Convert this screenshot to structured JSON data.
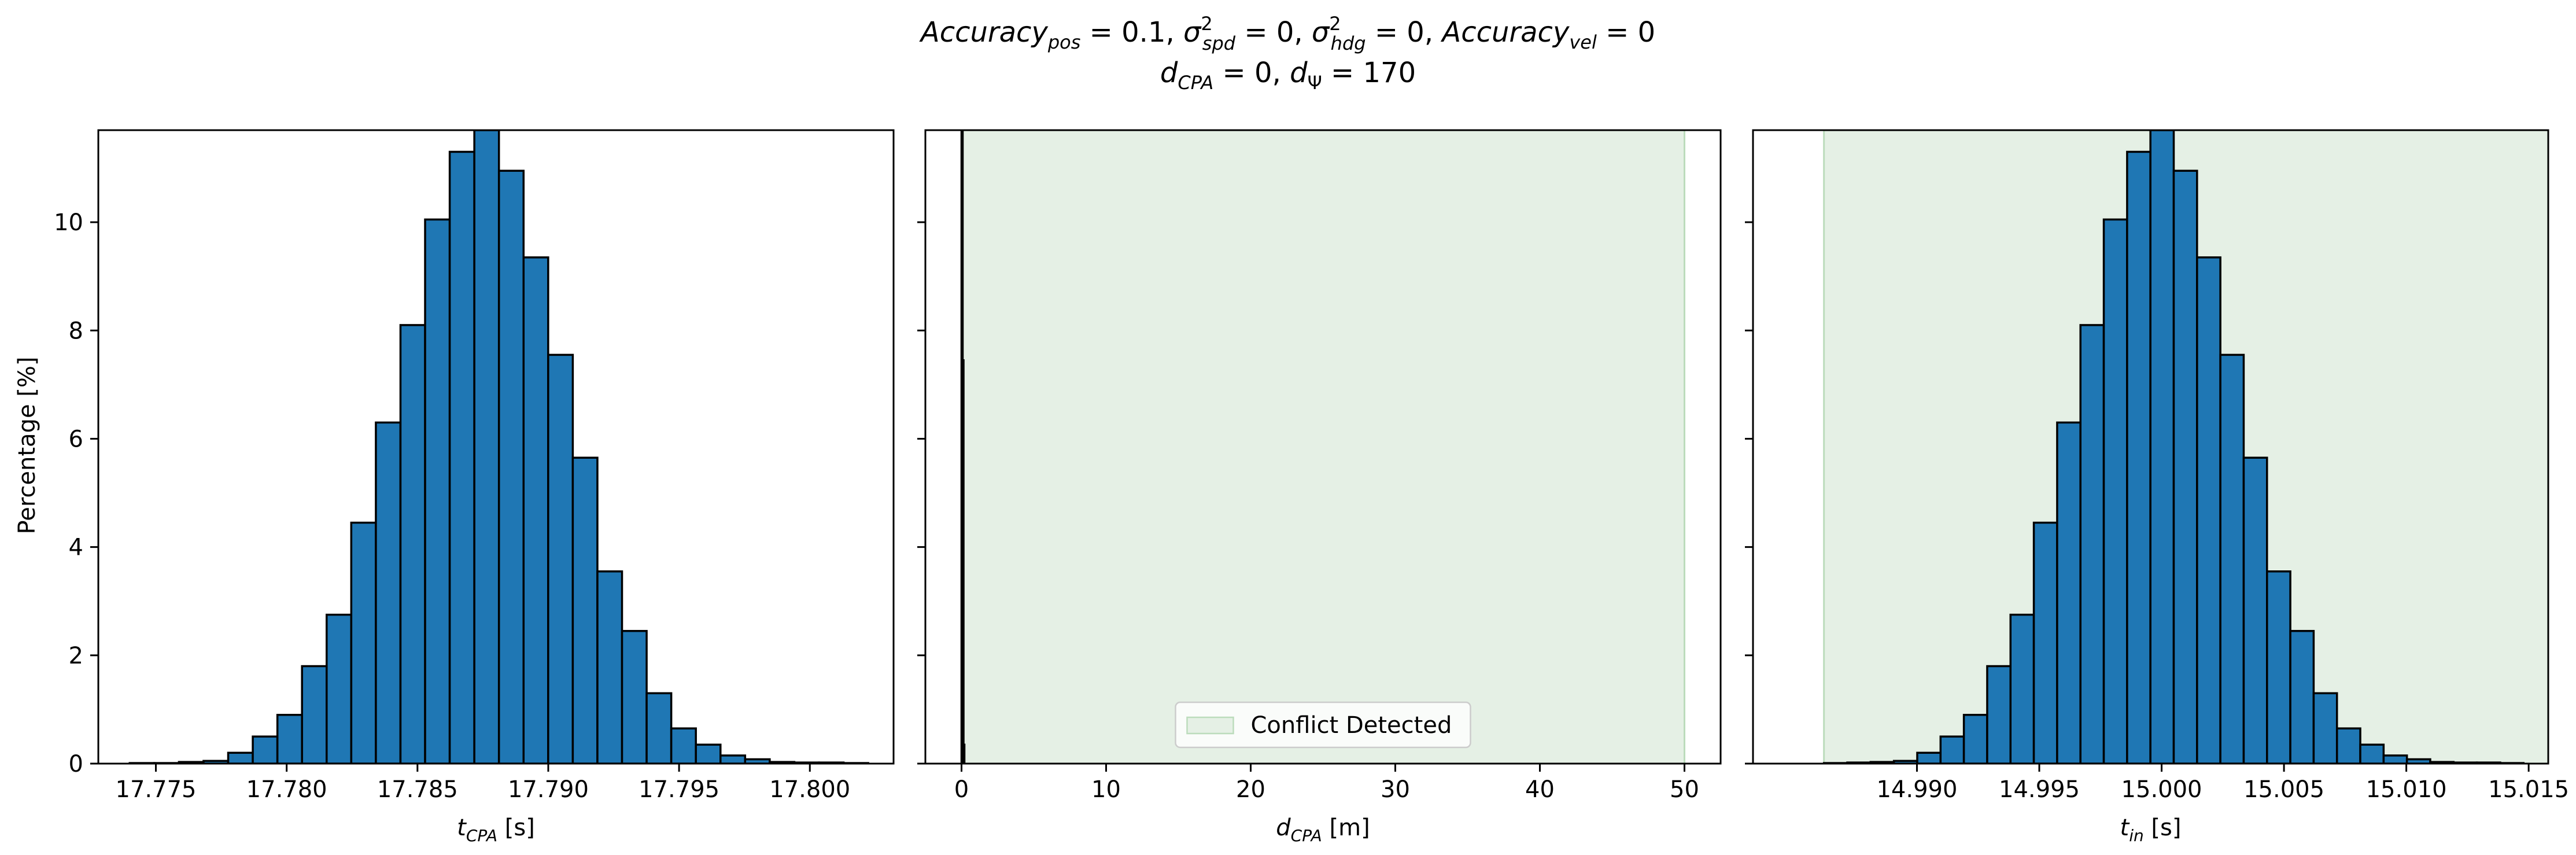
{
  "title": {
    "line1": {
      "acc_pos_base": "Accuracy",
      "acc_pos_sub": "pos",
      "acc_pos_val": " = 0.1, ",
      "sig_spd_base": "σ",
      "sig_spd_sup": "2",
      "sig_spd_sub": "spd",
      "sig_spd_val": " = 0, ",
      "sig_hdg_base": "σ",
      "sig_hdg_sup": "2",
      "sig_hdg_sub": "hdg",
      "sig_hdg_val": " = 0, ",
      "acc_vel_base": "Accuracy",
      "acc_vel_sub": "vel",
      "acc_vel_val": " = 0"
    },
    "line2": {
      "dcpa_base": "d",
      "dcpa_sub": "CPA",
      "dcpa_val": " = 0, ",
      "dpsi_base": "d",
      "dpsi_sub": "Ψ",
      "dpsi_val": " = 170"
    }
  },
  "colors": {
    "bar": "#1f77b4",
    "edge": "#000000",
    "conflict": "#e5f0e5",
    "conflict_edge": "#bcdcbc"
  },
  "chart_data": [
    {
      "type": "bar",
      "ylabel": "Percentage [%]",
      "xlabel": {
        "base": "t",
        "sub": "CPA",
        "unit": " [s]"
      },
      "xlim": [
        17.7728,
        17.8032
      ],
      "ylim": [
        0,
        11.7
      ],
      "xticks": [
        17.775,
        17.78,
        17.785,
        17.79,
        17.795,
        17.8
      ],
      "xticklabels": [
        "17.775",
        "17.780",
        "17.785",
        "17.790",
        "17.795",
        "17.800"
      ],
      "yticks": [
        0,
        2,
        4,
        6,
        8,
        10
      ],
      "yticklabels": [
        "0",
        "2",
        "4",
        "6",
        "8",
        "10"
      ],
      "bin_start": 17.774,
      "bin_width": 0.000941,
      "values": [
        0.01,
        0.01,
        0.03,
        0.05,
        0.2,
        0.5,
        0.9,
        1.8,
        2.75,
        4.45,
        6.3,
        8.1,
        10.05,
        11.3,
        11.7,
        10.95,
        9.35,
        7.55,
        5.65,
        3.55,
        2.45,
        1.3,
        0.65,
        0.35,
        0.15,
        0.08,
        0.03,
        0.02,
        0.02,
        0.01
      ]
    },
    {
      "type": "bar",
      "ylabel": "",
      "xlabel": {
        "base": "d",
        "sub": "CPA",
        "unit": " [m]"
      },
      "xlim": [
        -2.5,
        52.5
      ],
      "ylim": [
        0,
        11.7
      ],
      "xticks": [
        0,
        10,
        20,
        30,
        40,
        50
      ],
      "xticklabels": [
        "0",
        "10",
        "20",
        "30",
        "40",
        "50"
      ],
      "yticks": [
        0,
        2,
        4,
        6,
        8,
        10
      ],
      "yticklabels": [
        "",
        "",
        "",
        "",
        "",
        ""
      ],
      "conflict_region": [
        0,
        50
      ],
      "bars": [
        {
          "x0": 0,
          "x1": 0.06,
          "value": 11.7
        },
        {
          "x0": 0.06,
          "x1": 0.12,
          "value": 7.45
        },
        {
          "x0": 0.12,
          "x1": 0.18,
          "value": 0.35
        }
      ],
      "legend": {
        "label": "Conflict Detected",
        "position": "lower center"
      }
    },
    {
      "type": "bar",
      "ylabel": "",
      "xlabel": {
        "base": "t",
        "sub": "in",
        "unit": " [s]"
      },
      "xlim": [
        14.9833,
        15.0158
      ],
      "ylim": [
        0,
        11.7
      ],
      "xticks": [
        14.99,
        14.995,
        15.0,
        15.005,
        15.01,
        15.015
      ],
      "xticklabels": [
        "14.990",
        "14.995",
        "15.000",
        "15.005",
        "15.010",
        "15.015"
      ],
      "yticks": [
        0,
        2,
        4,
        6,
        8,
        10
      ],
      "yticklabels": [
        "",
        "",
        "",
        "",
        "",
        ""
      ],
      "conflict_region": [
        14.9862,
        15.0158
      ],
      "bin_start": 14.9862,
      "bin_width": 0.000953,
      "values": [
        0.01,
        0.02,
        0.03,
        0.05,
        0.2,
        0.5,
        0.9,
        1.8,
        2.75,
        4.45,
        6.3,
        8.1,
        10.05,
        11.3,
        11.7,
        10.95,
        9.35,
        7.55,
        5.65,
        3.55,
        2.45,
        1.3,
        0.65,
        0.35,
        0.15,
        0.08,
        0.03,
        0.02,
        0.02,
        0.01
      ]
    }
  ]
}
